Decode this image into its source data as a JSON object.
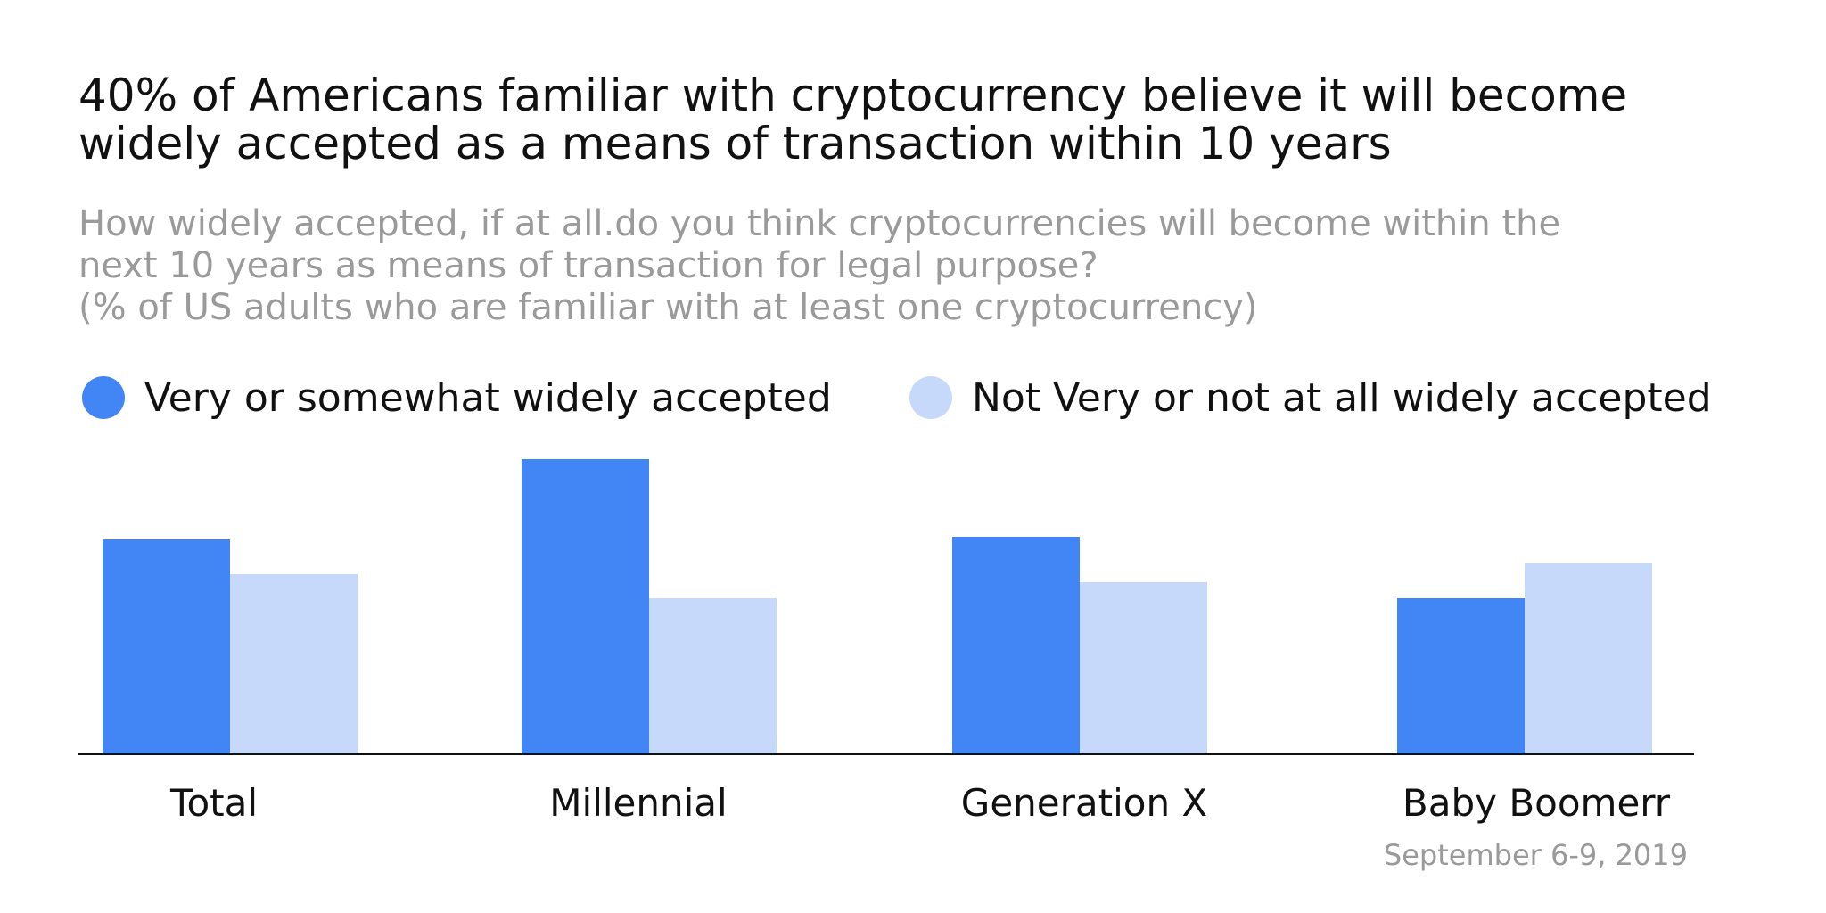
{
  "title": "40% of Americans familiar with cryptocurrency believe it will become\nwidely accepted as a means of transaction within 10 years",
  "subtitle": "How widely accepted, if at all.do you think cryptocurrencies will become within the\nnext 10 years as means of transaction for legal purpose?\n(% of US adults who are familiar with at least one cryptocurrency)",
  "date": "September 6-9, 2019",
  "colors": {
    "series_1": "#4285f4",
    "series_2": "#c6d9fb",
    "axis": "#111111"
  },
  "chart_data": {
    "type": "bar",
    "categories": [
      "Total",
      "Millennial",
      "Generation X",
      "Baby Boomerr"
    ],
    "series": [
      {
        "name": "Very or somewhat widely accepted",
        "values": [
          40,
          55,
          40.5,
          29
        ]
      },
      {
        "name": "Not Very or not at all widely accepted",
        "values": [
          33.5,
          29,
          32,
          35.5
        ]
      }
    ],
    "ylim": [
      0,
      60
    ],
    "grid": false,
    "legend": "top-left"
  }
}
